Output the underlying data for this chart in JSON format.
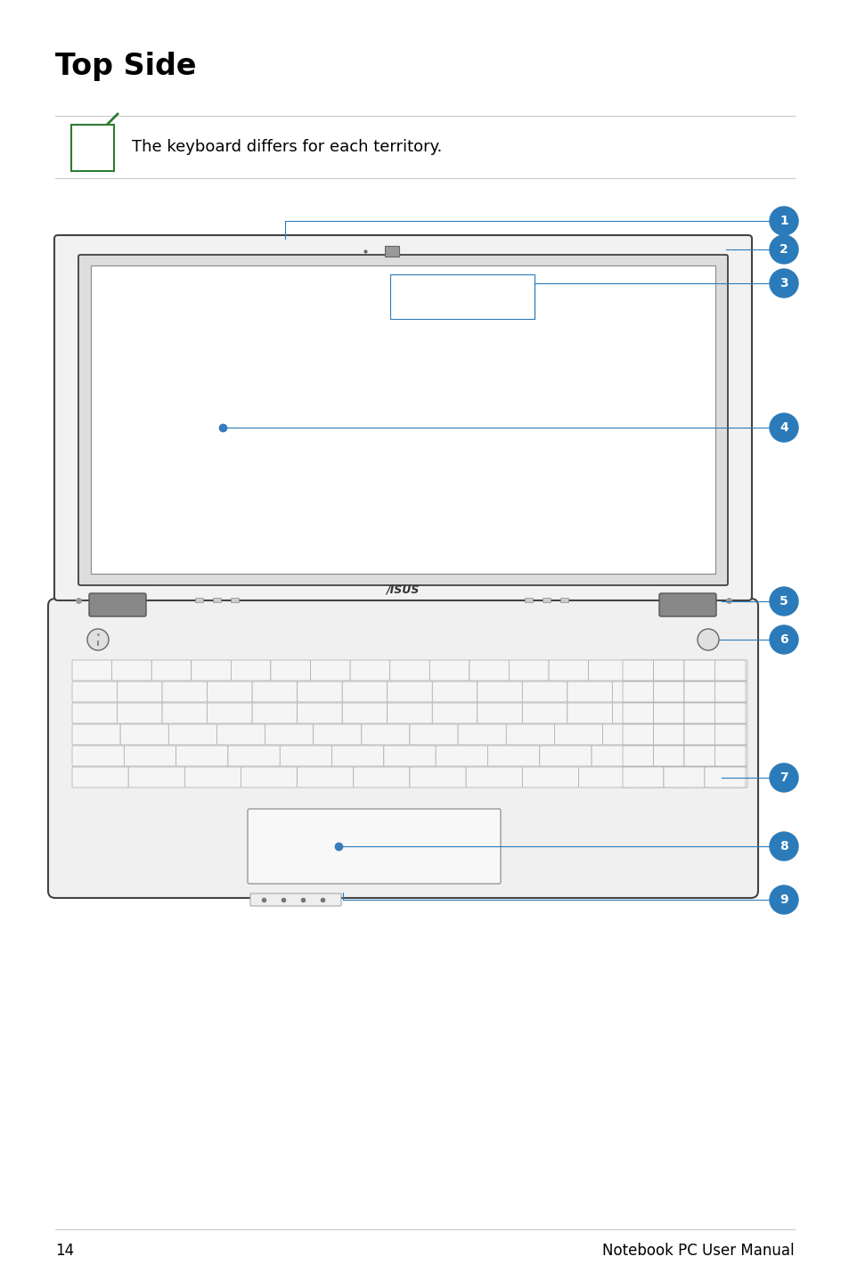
{
  "title": "Top Side",
  "note_text": "The keyboard differs for each territory.",
  "page_number": "14",
  "footer_text": "Notebook PC User Manual",
  "background_color": "#ffffff",
  "title_fontsize": 22,
  "note_fontsize": 12,
  "accent_color": "#2b7bba",
  "label_numbers": [
    "1",
    "2",
    "3",
    "4",
    "5",
    "6",
    "7",
    "8",
    "9"
  ],
  "green_icon_color": "#2e7d32",
  "line_color": "#cccccc",
  "laptop_edge_color": "#555555",
  "key_edge_color": "#aaaaaa",
  "key_face_color": "#f5f5f5",
  "screen_bg": "#f8f8f8",
  "base_bg": "#f0f0f0"
}
